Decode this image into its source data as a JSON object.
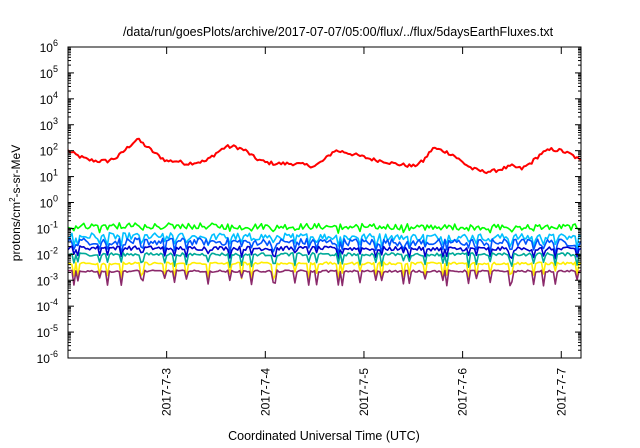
{
  "chart_data": {
    "type": "line",
    "title": "/data/run/goesPlots/archive/2017-07-07/05:00/flux/../flux/5daysEarthFluxes.txt",
    "xlabel": "Coordinated Universal Time (UTC)",
    "ylabel": "protons/cm2-s-sr-MeV",
    "ylabel_parts": {
      "pre": "protons/cm",
      "sup": "2",
      "post": "-s-sr-MeV"
    },
    "y_scale": "log",
    "y_exp_range": [
      -6,
      6
    ],
    "y_ticks": [
      {
        "base": "10",
        "exp": "-6"
      },
      {
        "base": "10",
        "exp": "-5"
      },
      {
        "base": "10",
        "exp": "-4"
      },
      {
        "base": "10",
        "exp": "-3"
      },
      {
        "base": "10",
        "exp": "-2"
      },
      {
        "base": "10",
        "exp": "-1"
      },
      {
        "base": "10",
        "exp": "0"
      },
      {
        "base": "10",
        "exp": "1"
      },
      {
        "base": "10",
        "exp": "2"
      },
      {
        "base": "10",
        "exp": "3"
      },
      {
        "base": "10",
        "exp": "4"
      },
      {
        "base": "10",
        "exp": "5"
      },
      {
        "base": "10",
        "exp": "6"
      }
    ],
    "x_range_days": [
      0,
      5.2
    ],
    "x_ticks": [
      {
        "day": 1,
        "label": "2017-7-3"
      },
      {
        "day": 2,
        "label": "2017-7-4"
      },
      {
        "day": 3,
        "label": "2017-7-5"
      },
      {
        "day": 4,
        "label": "2017-7-6"
      },
      {
        "day": 5,
        "label": "2017-7-7"
      }
    ],
    "grid": false,
    "legend": "none",
    "series": [
      {
        "color": "#ff0000",
        "log_base": [
          2.0,
          1.8,
          1.65,
          1.6,
          1.6,
          1.75,
          2.1,
          2.45,
          2.15,
          1.85,
          1.6,
          1.6,
          1.5,
          1.55,
          1.6,
          1.9,
          2.15,
          2.15,
          2.0,
          1.7,
          1.55,
          1.5,
          1.5,
          1.5,
          1.45,
          1.4,
          1.65,
          2.0,
          1.95,
          1.85,
          1.75,
          1.65,
          1.6,
          1.5,
          1.45,
          1.4,
          1.6,
          2.1,
          2.0,
          1.85,
          1.55,
          1.3,
          1.2,
          1.2,
          1.3,
          1.4,
          1.3,
          1.55,
          1.9,
          2.05,
          2.0,
          1.85,
          1.6
        ],
        "noise": 0.07,
        "dips": 0
      },
      {
        "color": "#00ff00",
        "log_base": [
          -0.9,
          -0.95
        ],
        "noise": 0.12,
        "dips": 0.15
      },
      {
        "color": "#00c0ff",
        "log_base": [
          -1.3,
          -1.35
        ],
        "noise": 0.14,
        "dips": 0.3
      },
      {
        "color": "#0055ff",
        "log_base": [
          -1.5,
          -1.55
        ],
        "noise": 0.14,
        "dips": 0.35
      },
      {
        "color": "#0000cc",
        "log_base": [
          -1.75,
          -1.8
        ],
        "noise": 0.08,
        "dips": 0.3
      },
      {
        "color": "#00aa99",
        "log_base": [
          -2.0,
          -2.0
        ],
        "noise": 0.06,
        "dips": 0.4
      },
      {
        "color": "#ffee00",
        "log_base": [
          -2.35,
          -2.35
        ],
        "noise": 0.05,
        "dips": 0.5
      },
      {
        "color": "#8b2a6b",
        "log_base": [
          -2.65,
          -2.65
        ],
        "noise": 0.04,
        "dips": 0.45
      }
    ]
  }
}
